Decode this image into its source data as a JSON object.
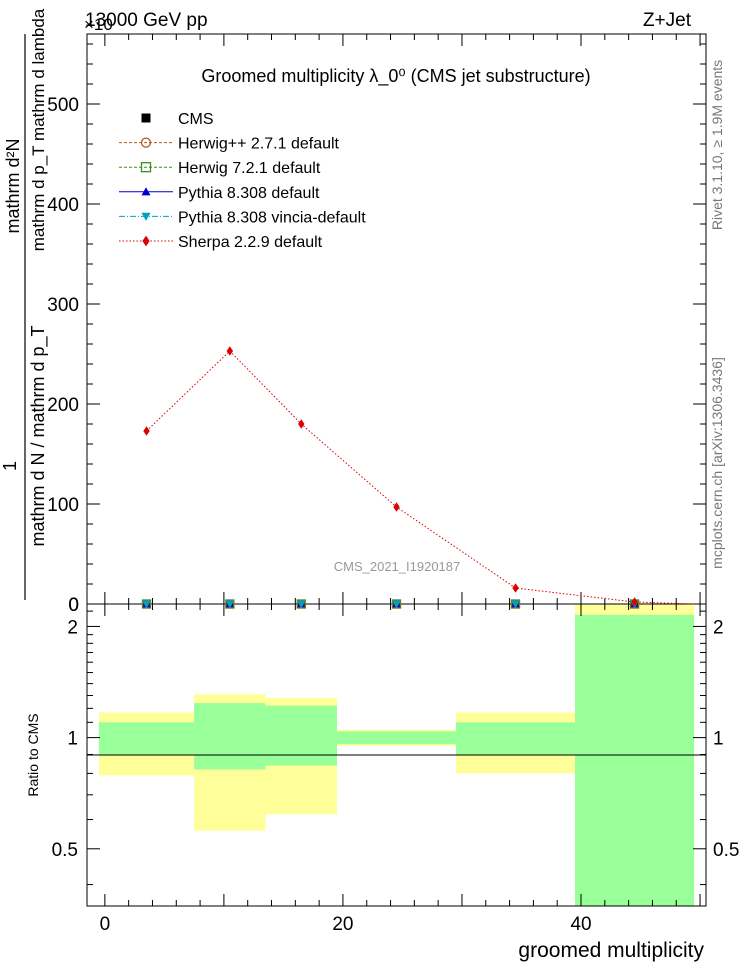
{
  "header": {
    "left": "13000 GeV pp",
    "right": "Z+Jet",
    "exponent": "×10"
  },
  "side": {
    "top": "Rivet 3.1.10, ≥ 1.9M events",
    "bottom": "mcplots.cern.ch [arXiv:1306.3436]"
  },
  "colors": {
    "cms": "#000000",
    "herwigpp": "#b05a1a",
    "herwig7": "#3a8f1a",
    "pythia": "#0000cc",
    "vincia": "#00a0c0",
    "sherpa": "#dd0000",
    "band_inner": "#99ff99",
    "band_outer": "#ffff99"
  },
  "chart_data": [
    {
      "type": "line",
      "title": "Groomed multiplicity  λ_0⁰ (CMS jet substructure)",
      "ylabel_numerator": "mathrm d²N",
      "ylabel_sub": "mathrm d p_T mathrm d lambda",
      "ylabel_one": "1",
      "ylabel_denominator": "mathrm d N / mathrm d p_T",
      "ylim": [
        0,
        570
      ],
      "xlim": [
        -1.5,
        50.5
      ],
      "yticks": [
        0,
        100,
        200,
        300,
        400,
        500
      ],
      "watermark": "CMS_2021_I1920187",
      "legend": [
        {
          "label": "CMS",
          "marker": "square-filled",
          "color": "#000000"
        },
        {
          "label": "Herwig++ 2.7.1 default",
          "marker": "circle-open",
          "color": "#b05a1a"
        },
        {
          "label": "Herwig 7.2.1 default",
          "marker": "square-open",
          "color": "#3a8f1a"
        },
        {
          "label": "Pythia 8.308 default",
          "marker": "triangle-up",
          "color": "#0000cc"
        },
        {
          "label": "Pythia 8.308 vincia-default",
          "marker": "triangle-down",
          "color": "#00a0c0"
        },
        {
          "label": "Sherpa 2.2.9 default",
          "marker": "diamond",
          "color": "#dd0000"
        }
      ],
      "series": [
        {
          "name": "Sherpa 2.2.9 default",
          "x": [
            3.5,
            10.5,
            16.5,
            24.5,
            34.5,
            44.5
          ],
          "values": [
            173,
            253,
            180,
            97,
            16,
            2
          ]
        },
        {
          "name": "CMS",
          "x": [
            3.5,
            10.5,
            16.5,
            24.5,
            34.5,
            44.5
          ],
          "values": [
            0,
            0,
            0,
            0,
            0,
            0
          ]
        }
      ]
    },
    {
      "type": "area",
      "ylabel": "Ratio to CMS",
      "xlabel": "groomed multiplicity",
      "ylim": [
        0.35,
        2.3
      ],
      "xlim": [
        -1.5,
        50.5
      ],
      "xticks": [
        0,
        20,
        40
      ],
      "yticks": [
        0.5,
        1,
        2
      ],
      "bins": [
        {
          "lo": -0.5,
          "hi": 7.5,
          "outer": [
            0.79,
            1.17
          ],
          "inner": [
            0.9,
            1.1
          ]
        },
        {
          "lo": 7.5,
          "hi": 13.5,
          "outer": [
            0.56,
            1.31
          ],
          "inner": [
            0.82,
            1.24
          ]
        },
        {
          "lo": 13.5,
          "hi": 19.5,
          "outer": [
            0.62,
            1.28
          ],
          "inner": [
            0.84,
            1.22
          ]
        },
        {
          "lo": 19.5,
          "hi": 29.5,
          "outer": [
            0.95,
            1.05
          ],
          "inner": [
            0.96,
            1.04
          ]
        },
        {
          "lo": 29.5,
          "hi": 39.5,
          "outer": [
            0.8,
            1.17
          ],
          "inner": [
            0.9,
            1.1
          ]
        },
        {
          "lo": 39.5,
          "hi": 49.5,
          "outer": [
            0.3,
            2.3
          ],
          "inner": [
            0.3,
            2.15
          ]
        }
      ]
    }
  ]
}
